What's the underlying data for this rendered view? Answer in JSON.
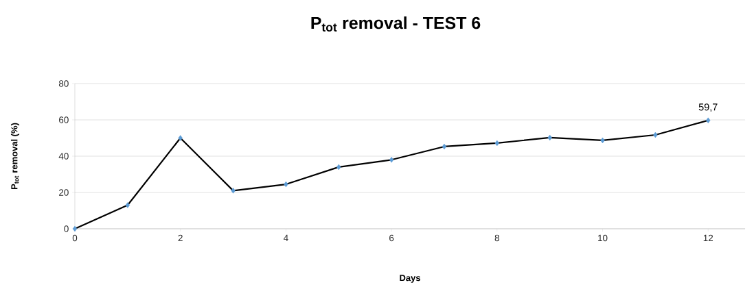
{
  "chart_data": {
    "type": "line",
    "title": "P$_{tot}$ removal - TEST 6",
    "xlabel": "Days",
    "ylabel": "P$_{tot}$ removal (%)",
    "x": [
      0,
      1,
      2,
      3,
      4,
      5,
      6,
      7,
      8,
      9,
      10,
      11,
      12
    ],
    "series": [
      {
        "color": "#000000",
        "values": [
          0,
          13,
          50,
          21,
          24.5,
          34,
          38,
          45.3,
          47.2,
          50.2,
          48.7,
          51.7,
          59.7
        ],
        "colors": [
          "#5b9bd5",
          "#5b9bd5",
          "#5b9bd5",
          "#5b9bd5",
          "#5b9bd5",
          "#5b9bd5",
          "#5b9bd5",
          "#5b9bd5",
          "#5b9bd5",
          "#5b9bd5",
          "#5b9bd5",
          "#5b9bd5",
          "#5b9bd5"
        ],
        "value_labels": [
          null,
          null,
          null,
          null,
          null,
          null,
          null,
          null,
          null,
          null,
          null,
          null,
          "59,7"
        ]
      }
    ],
    "marker": "diamond",
    "line_style": "solid",
    "grid": "y",
    "xlim": [
      0,
      12.7
    ],
    "ylim": [
      0,
      80
    ],
    "xticks": [
      0,
      2,
      4,
      6,
      8,
      10,
      12
    ],
    "yticks": [
      0,
      20,
      40,
      60,
      80
    ]
  }
}
